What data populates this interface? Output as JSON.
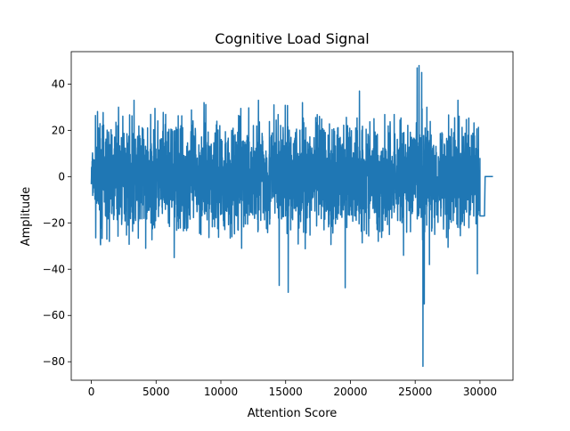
{
  "chart_data": {
    "type": "line",
    "title": "Cognitive Load Signal",
    "xlabel": "Attention Score",
    "ylabel": "Amplitude",
    "xlim": [
      -1550,
      32550
    ],
    "ylim": [
      -88,
      54
    ],
    "xticks": [
      0,
      5000,
      10000,
      15000,
      20000,
      25000,
      30000
    ],
    "xtick_labels": [
      "0",
      "5000",
      "10000",
      "15000",
      "20000",
      "25000",
      "30000"
    ],
    "yticks": [
      -80,
      -60,
      -40,
      -20,
      0,
      20,
      40
    ],
    "ytick_labels": [
      "−80",
      "−60",
      "−40",
      "−20",
      "0",
      "20",
      "40"
    ],
    "grid": false,
    "legend": "none",
    "series": [
      {
        "color": "#1f77b4",
        "x_start": 0,
        "x_end": 31000,
        "noise_x_end": 30000,
        "band": [
          -25,
          25
        ],
        "tail_x": [
          30000,
          30050,
          30300,
          30350,
          30400,
          30900,
          31000
        ],
        "tail_y": [
          -17,
          -17,
          -17,
          -17,
          0,
          0,
          0
        ],
        "spikes_x": [
          1200,
          2100,
          3300,
          4200,
          6400,
          8700,
          11600,
          12900,
          14100,
          14500,
          15200,
          16300,
          19600,
          20700,
          24100,
          25150,
          25300,
          25500,
          25600,
          25700,
          25900,
          26100,
          28300,
          29800
        ],
        "spikes_y": [
          -27,
          30,
          33,
          -31,
          -35,
          32,
          -31,
          33,
          31,
          -47,
          -50,
          32,
          -48,
          37,
          -34,
          47,
          48,
          45,
          -82,
          -55,
          30,
          -38,
          33,
          -42
        ]
      }
    ]
  }
}
